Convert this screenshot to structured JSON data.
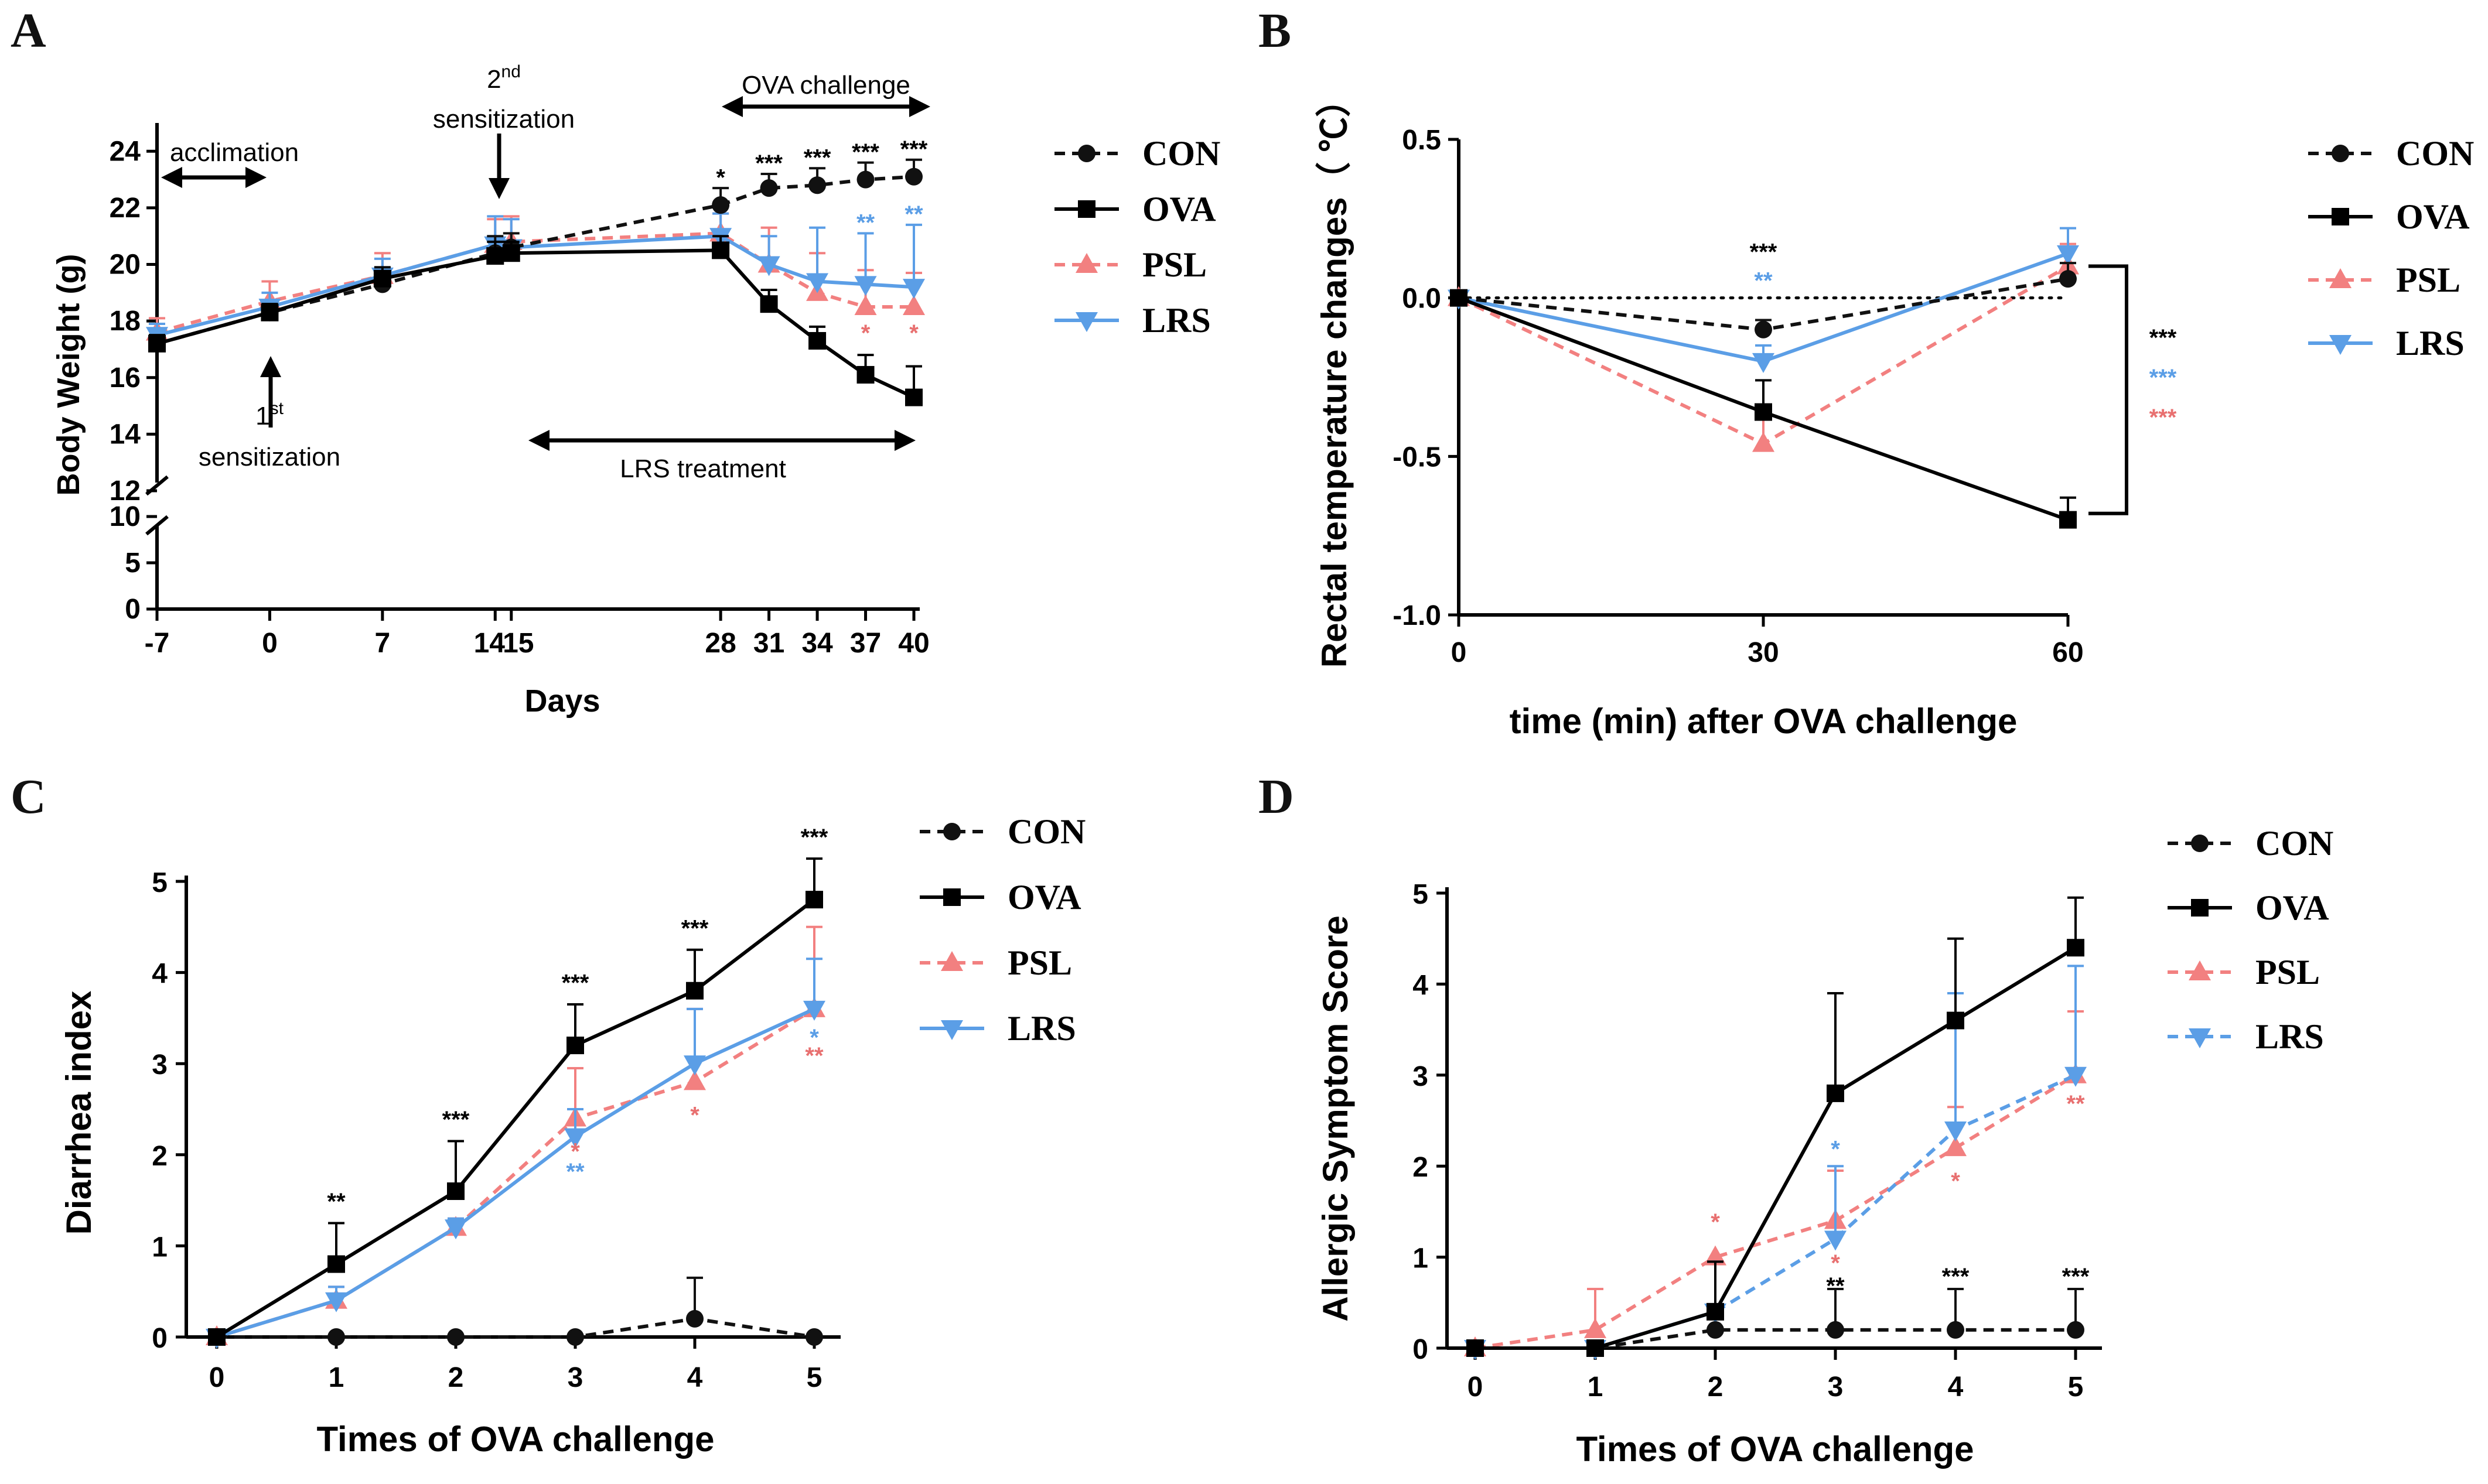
{
  "colors": {
    "CON": "#111111",
    "OVA": "#000000",
    "PSL": "#f28080",
    "LRS": "#5b9ee6",
    "sig_black": "#000000",
    "sig_blue": "#5b9ee6",
    "sig_red": "#e87070"
  },
  "chart_data": [
    {
      "panel": "A",
      "type": "line",
      "xlabel": "Days",
      "ylabel": "Body Weight (g)",
      "x": [
        -7,
        0,
        7,
        14,
        15,
        28,
        31,
        34,
        37,
        40
      ],
      "x_tick_labels": [
        "-7",
        "0",
        "7",
        "14",
        "15",
        "28",
        "31",
        "34",
        "37",
        "40"
      ],
      "xlim": [
        -7,
        40
      ],
      "y_upper_ticks": [
        "12",
        "14",
        "16",
        "18",
        "20",
        "22",
        "24"
      ],
      "y_lower_ticks": [
        "0",
        "5",
        "10"
      ],
      "ylim_upper": [
        12,
        25
      ],
      "ylim_lower": [
        0,
        10
      ],
      "series": [
        {
          "name": "CON",
          "marker": "circle",
          "dash": true,
          "values": [
            17.2,
            18.3,
            19.3,
            20.4,
            20.6,
            22.1,
            22.7,
            22.8,
            23.0,
            23.1
          ],
          "err": [
            0.3,
            0.3,
            0.4,
            0.6,
            0.5,
            0.6,
            0.5,
            0.6,
            0.6,
            0.6
          ]
        },
        {
          "name": "OVA",
          "marker": "square",
          "dash": false,
          "values": [
            17.2,
            18.3,
            19.5,
            20.3,
            20.4,
            20.5,
            18.6,
            17.3,
            16.1,
            15.3
          ],
          "err": [
            0.3,
            0.3,
            0.4,
            0.5,
            0.4,
            0.5,
            0.5,
            0.5,
            0.7,
            1.1
          ]
        },
        {
          "name": "PSL",
          "marker": "triangle-up",
          "dash": true,
          "values": [
            17.6,
            18.7,
            19.6,
            20.7,
            20.8,
            21.1,
            20.0,
            19.0,
            18.5,
            18.5
          ],
          "err": [
            0.5,
            0.7,
            0.8,
            0.9,
            0.9,
            0.7,
            1.3,
            1.4,
            1.3,
            1.2
          ]
        },
        {
          "name": "LRS",
          "marker": "triangle-down",
          "dash": false,
          "values": [
            17.5,
            18.5,
            19.6,
            20.7,
            20.6,
            21.0,
            20.0,
            19.4,
            19.3,
            19.2
          ],
          "err": [
            0.4,
            0.5,
            0.6,
            1.0,
            1.0,
            0.8,
            1.0,
            1.9,
            1.8,
            2.2
          ]
        }
      ],
      "significance": [
        {
          "x": 28,
          "y": 22.8,
          "text": "*",
          "color": "black"
        },
        {
          "x": 31,
          "y": 23.3,
          "text": "***",
          "color": "black"
        },
        {
          "x": 34,
          "y": 23.5,
          "text": "***",
          "color": "black"
        },
        {
          "x": 37,
          "y": 23.7,
          "text": "***",
          "color": "black"
        },
        {
          "x": 40,
          "y": 23.8,
          "text": "***",
          "color": "black"
        },
        {
          "x": 37,
          "y": 21.2,
          "text": "**",
          "color": "blue"
        },
        {
          "x": 40,
          "y": 21.5,
          "text": "**",
          "color": "blue"
        },
        {
          "x": 37,
          "y": 17.3,
          "text": "*",
          "color": "red"
        },
        {
          "x": 40,
          "y": 17.3,
          "text": "*",
          "color": "red"
        }
      ],
      "annotations": {
        "acclimation": "acclimation",
        "ova_challenge": "OVA challenge",
        "second_sens_sup": "nd",
        "second_sens_num": "2",
        "second_sens_text": "sensitization",
        "first_sens_num": "1",
        "first_sens_sup": "st",
        "first_sens_text": "sensitization",
        "lrs_treatment": "LRS treatment"
      },
      "legend": [
        "CON",
        "OVA",
        "PSL",
        "LRS"
      ]
    },
    {
      "panel": "B",
      "type": "line",
      "xlabel": "time (min) after OVA challenge",
      "ylabel": "Rectal temperature changes（ ℃）",
      "x": [
        0,
        30,
        60
      ],
      "x_tick_labels": [
        "0",
        "30",
        "60"
      ],
      "xlim": [
        0,
        60
      ],
      "ylim": [
        -1.0,
        0.5
      ],
      "y_ticks": [
        -1.0,
        -0.5,
        0.0,
        0.5
      ],
      "y_tick_labels": [
        "-1.0",
        "-0.5",
        "0.0",
        "0.5"
      ],
      "series": [
        {
          "name": "CON",
          "marker": "circle",
          "dash": true,
          "values": [
            0,
            -0.1,
            0.06
          ],
          "err": [
            0,
            0.03,
            0.05
          ]
        },
        {
          "name": "OVA",
          "marker": "square",
          "dash": false,
          "values": [
            0,
            -0.36,
            -0.7
          ],
          "err": [
            0,
            0.1,
            0.07
          ]
        },
        {
          "name": "PSL",
          "marker": "triangle-up",
          "dash": true,
          "values": [
            0,
            -0.46,
            0.1
          ],
          "err": [
            0,
            0.11,
            0.07
          ]
        },
        {
          "name": "LRS",
          "marker": "triangle-down",
          "dash": false,
          "values": [
            0,
            -0.2,
            0.14
          ],
          "err": [
            0,
            0.05,
            0.08
          ]
        }
      ],
      "significance": [
        {
          "x": 30,
          "y": 0.12,
          "text": "***",
          "color": "black"
        },
        {
          "x": 30,
          "y": 0.03,
          "text": "**",
          "color": "blue"
        }
      ],
      "bracket_significance": [
        {
          "text": "***",
          "color": "black"
        },
        {
          "text": "***",
          "color": "blue"
        },
        {
          "text": "***",
          "color": "red"
        }
      ],
      "legend": [
        "CON",
        "OVA",
        "PSL",
        "LRS"
      ]
    },
    {
      "panel": "C",
      "type": "line",
      "xlabel": "Times of OVA challenge",
      "ylabel": "Diarrhea index",
      "x": [
        0,
        1,
        2,
        3,
        4,
        5
      ],
      "x_tick_labels": [
        "0",
        "1",
        "2",
        "3",
        "4",
        "5"
      ],
      "ylim": [
        0,
        5
      ],
      "y_ticks": [
        0,
        1,
        2,
        3,
        4,
        5
      ],
      "y_tick_labels": [
        "0",
        "1",
        "2",
        "3",
        "4",
        "5"
      ],
      "series": [
        {
          "name": "CON",
          "marker": "circle",
          "dash": true,
          "values": [
            0,
            0,
            0,
            0,
            0.2,
            0
          ],
          "err": [
            0,
            0,
            0,
            0,
            0.45,
            0
          ]
        },
        {
          "name": "OVA",
          "marker": "square",
          "dash": false,
          "values": [
            0,
            0.8,
            1.6,
            3.2,
            3.8,
            4.8
          ],
          "err": [
            0.05,
            0.45,
            0.55,
            0.45,
            0.45,
            0.45
          ]
        },
        {
          "name": "PSL",
          "marker": "triangle-up",
          "dash": true,
          "values": [
            0,
            0.4,
            1.2,
            2.4,
            2.8,
            3.6
          ],
          "err": [
            0,
            0.15,
            0.1,
            0.55,
            0.8,
            0.9
          ]
        },
        {
          "name": "LRS",
          "marker": "triangle-down",
          "dash": false,
          "values": [
            0,
            0.4,
            1.2,
            2.2,
            3.0,
            3.6
          ],
          "err": [
            0,
            0.15,
            0.1,
            0.3,
            0.6,
            0.55
          ]
        }
      ],
      "significance": [
        {
          "x": 1,
          "y": 1.4,
          "text": "**",
          "color": "black"
        },
        {
          "x": 2,
          "y": 2.3,
          "text": "***",
          "color": "black"
        },
        {
          "x": 3,
          "y": 3.8,
          "text": "***",
          "color": "black"
        },
        {
          "x": 4,
          "y": 4.4,
          "text": "***",
          "color": "black"
        },
        {
          "x": 5,
          "y": 5.4,
          "text": "***",
          "color": "black"
        },
        {
          "x": 3,
          "y": 1.95,
          "text": "*",
          "color": "red"
        },
        {
          "x": 3,
          "y": 1.73,
          "text": "**",
          "color": "blue"
        },
        {
          "x": 4,
          "y": 2.35,
          "text": "*",
          "color": "red"
        },
        {
          "x": 5,
          "y": 3.2,
          "text": "*",
          "color": "blue"
        },
        {
          "x": 5,
          "y": 3.0,
          "text": "**",
          "color": "red"
        }
      ],
      "legend": [
        "CON",
        "OVA",
        "PSL",
        "LRS"
      ]
    },
    {
      "panel": "D",
      "type": "line",
      "xlabel": "Times of OVA challenge",
      "ylabel": "Allergic Symptom Score",
      "x": [
        0,
        1,
        2,
        3,
        4,
        5
      ],
      "x_tick_labels": [
        "0",
        "1",
        "2",
        "3",
        "4",
        "5"
      ],
      "ylim": [
        0,
        5
      ],
      "y_ticks": [
        0,
        1,
        2,
        3,
        4,
        5
      ],
      "y_tick_labels": [
        "0",
        "1",
        "2",
        "3",
        "4",
        "5"
      ],
      "series": [
        {
          "name": "CON",
          "marker": "circle",
          "dash": true,
          "values": [
            0,
            0,
            0.2,
            0.2,
            0.2,
            0.2
          ],
          "err": [
            0,
            0,
            0,
            0.45,
            0.45,
            0.45
          ]
        },
        {
          "name": "OVA",
          "marker": "square",
          "dash": false,
          "values": [
            0,
            0,
            0.4,
            2.8,
            3.6,
            4.4
          ],
          "err": [
            0,
            0,
            0.55,
            1.1,
            0.9,
            0.55
          ]
        },
        {
          "name": "PSL",
          "marker": "triangle-up",
          "dash": true,
          "values": [
            0,
            0.2,
            1.0,
            1.4,
            2.2,
            3.0
          ],
          "err": [
            0,
            0.45,
            0,
            0.55,
            0.45,
            0.7
          ]
        },
        {
          "name": "LRS",
          "marker": "triangle-down",
          "dash": true,
          "values": [
            0,
            0,
            0.4,
            1.2,
            2.4,
            3.0
          ],
          "err": [
            0,
            0,
            0.55,
            0.8,
            1.5,
            1.2
          ]
        }
      ],
      "significance": [
        {
          "x": 2,
          "y": 1.3,
          "text": "*",
          "color": "red"
        },
        {
          "x": 3,
          "y": 0.85,
          "text": "*",
          "color": "red"
        },
        {
          "x": 3,
          "y": 2.1,
          "text": "*",
          "color": "blue"
        },
        {
          "x": 3,
          "y": 0.6,
          "text": "**",
          "color": "black"
        },
        {
          "x": 4,
          "y": 1.75,
          "text": "*",
          "color": "red"
        },
        {
          "x": 4,
          "y": 0.7,
          "text": "***",
          "color": "black"
        },
        {
          "x": 5,
          "y": 2.6,
          "text": "**",
          "color": "red"
        },
        {
          "x": 5,
          "y": 0.7,
          "text": "***",
          "color": "black"
        }
      ],
      "legend": [
        "CON",
        "OVA",
        "PSL",
        "LRS"
      ]
    }
  ]
}
